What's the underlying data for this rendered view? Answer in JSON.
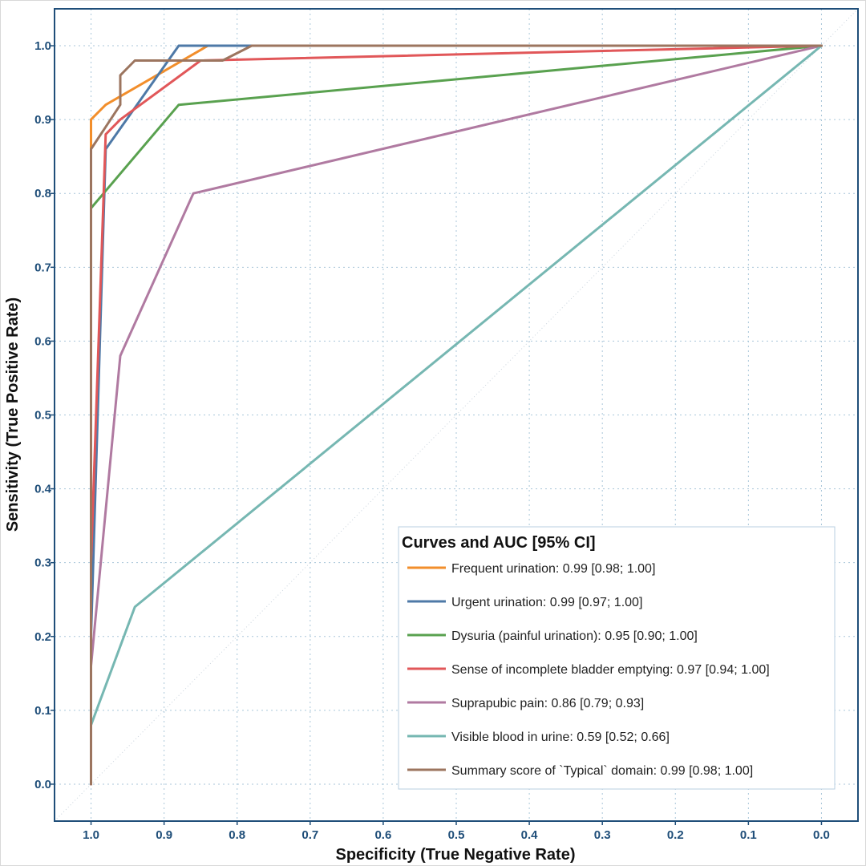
{
  "chart_data": {
    "type": "line",
    "xlabel": "Specificity (True Negative Rate)",
    "ylabel": "Sensitivity (True Positive Rate)",
    "xlim": [
      1.05,
      -0.05
    ],
    "ylim": [
      -0.05,
      1.05
    ],
    "x_reversed": true,
    "xticks": [
      1.0,
      0.9,
      0.8,
      0.7,
      0.6,
      0.5,
      0.4,
      0.3,
      0.2,
      0.1,
      0.0
    ],
    "yticks": [
      0.0,
      0.1,
      0.2,
      0.3,
      0.4,
      0.5,
      0.6,
      0.7,
      0.8,
      0.9,
      1.0
    ],
    "xtick_labels": [
      "1.0",
      "0.9",
      "0.8",
      "0.7",
      "0.6",
      "0.5",
      "0.4",
      "0.3",
      "0.2",
      "0.1",
      "0.0"
    ],
    "ytick_labels": [
      "0.0",
      "0.1",
      "0.2",
      "0.3",
      "0.4",
      "0.5",
      "0.6",
      "0.7",
      "0.8",
      "0.9",
      "1.0"
    ],
    "grid": true,
    "diagonal_reference": true,
    "legend": {
      "title": "Curves and AUC [95% CI]",
      "placement": "bottom-right"
    },
    "series": [
      {
        "name": "Frequent urination: 0.99 [0.98; 1.00]",
        "color": "#f28e2b",
        "points": [
          [
            1.0,
            0.0
          ],
          [
            1.0,
            0.9
          ],
          [
            0.98,
            0.92
          ],
          [
            0.84,
            1.0
          ],
          [
            0.0,
            1.0
          ]
        ]
      },
      {
        "name": "Urgent urination: 0.99 [0.97; 1.00]",
        "color": "#4e79a7",
        "points": [
          [
            1.0,
            0.0
          ],
          [
            1.0,
            0.2
          ],
          [
            0.98,
            0.86
          ],
          [
            0.88,
            1.0
          ],
          [
            0.0,
            1.0
          ]
        ]
      },
      {
        "name": "Dysuria (painful urination): 0.95 [0.90; 1.00]",
        "color": "#59a14f",
        "points": [
          [
            1.0,
            0.0
          ],
          [
            1.0,
            0.78
          ],
          [
            0.88,
            0.92
          ],
          [
            0.0,
            1.0
          ]
        ]
      },
      {
        "name": "Sense of incomplete bladder emptying: 0.97 [0.94; 1.00]",
        "color": "#e15759",
        "points": [
          [
            1.0,
            0.0
          ],
          [
            1.0,
            0.3
          ],
          [
            0.98,
            0.88
          ],
          [
            0.96,
            0.9
          ],
          [
            0.85,
            0.98
          ],
          [
            0.0,
            1.0
          ]
        ]
      },
      {
        "name": "Suprapubic pain: 0.86 [0.79; 0.93]",
        "color": "#b07aa1",
        "points": [
          [
            1.0,
            0.0
          ],
          [
            1.0,
            0.16
          ],
          [
            0.96,
            0.58
          ],
          [
            0.86,
            0.8
          ],
          [
            0.0,
            1.0
          ]
        ]
      },
      {
        "name": "Visible blood in urine: 0.59 [0.52; 0.66]",
        "color": "#76b7b2",
        "points": [
          [
            1.0,
            0.08
          ],
          [
            0.94,
            0.24
          ],
          [
            0.0,
            1.0
          ]
        ]
      },
      {
        "name": "Summary score of `Typical` domain: 0.99 [0.98; 1.00]",
        "color": "#9c755f",
        "points": [
          [
            1.0,
            0.0
          ],
          [
            1.0,
            0.86
          ],
          [
            0.96,
            0.92
          ],
          [
            0.96,
            0.96
          ],
          [
            0.94,
            0.98
          ],
          [
            0.82,
            0.98
          ],
          [
            0.78,
            1.0
          ],
          [
            0.0,
            1.0
          ]
        ]
      }
    ]
  }
}
